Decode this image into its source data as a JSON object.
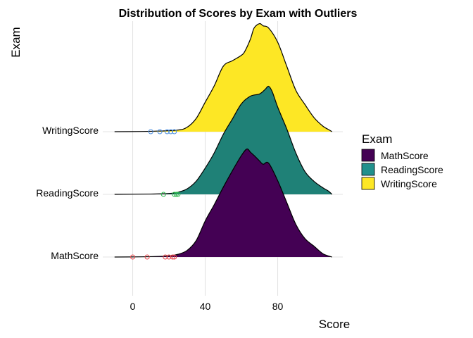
{
  "chart_data": {
    "type": "ridgeline",
    "title": "Distribution of Scores by Exam with Outliers",
    "xlabel": "Score",
    "ylabel": "Exam",
    "xlim": [
      -11,
      110
    ],
    "x_ticks": [
      0,
      40,
      80
    ],
    "grid": true,
    "legend": {
      "title": "Exam",
      "position": "right",
      "entries": [
        {
          "label": "MathScore",
          "color": "#440154"
        },
        {
          "label": "ReadingScore",
          "color": "#21908C"
        },
        {
          "label": "WritingScore",
          "color": "#FDE725"
        }
      ]
    },
    "categories": [
      "MathScore",
      "ReadingScore",
      "WritingScore"
    ],
    "series": [
      {
        "name": "MathScore",
        "fill": "#440154",
        "outlier_color": "#E8474B",
        "density_x": [
          -10,
          5,
          15,
          20,
          25,
          30,
          35,
          40,
          45,
          50,
          55,
          60,
          63,
          65,
          67,
          70,
          72,
          75,
          80,
          85,
          90,
          95,
          100,
          105,
          110
        ],
        "density_y": [
          0.0,
          0.002,
          0.006,
          0.01,
          0.025,
          0.06,
          0.15,
          0.33,
          0.48,
          0.64,
          0.79,
          0.93,
          0.99,
          0.96,
          0.93,
          0.88,
          0.85,
          0.86,
          0.7,
          0.5,
          0.3,
          0.17,
          0.1,
          0.03,
          0.0
        ],
        "outliers": [
          0,
          8,
          18,
          20,
          22,
          23
        ]
      },
      {
        "name": "ReadingScore",
        "fill": "#1F8177",
        "outlier_color": "#2DB84C",
        "density_x": [
          -10,
          10,
          20,
          25,
          30,
          35,
          40,
          45,
          50,
          55,
          60,
          65,
          70,
          73,
          75,
          77,
          80,
          85,
          90,
          95,
          100,
          105,
          108,
          110
        ],
        "density_y": [
          0.0,
          0.003,
          0.008,
          0.02,
          0.05,
          0.12,
          0.24,
          0.38,
          0.55,
          0.69,
          0.83,
          0.9,
          0.92,
          0.96,
          0.99,
          0.94,
          0.8,
          0.6,
          0.38,
          0.21,
          0.12,
          0.06,
          0.03,
          0.0
        ],
        "outliers": [
          17,
          23,
          24,
          25
        ]
      },
      {
        "name": "WritingScore",
        "fill": "#FDE725",
        "outlier_color": "#4C8FE0",
        "density_x": [
          -10,
          5,
          15,
          25,
          30,
          35,
          40,
          45,
          50,
          55,
          60,
          62,
          65,
          67,
          70,
          72,
          75,
          80,
          85,
          90,
          95,
          100,
          105,
          108,
          110
        ],
        "density_y": [
          0.0,
          0.002,
          0.006,
          0.015,
          0.04,
          0.12,
          0.27,
          0.42,
          0.6,
          0.65,
          0.7,
          0.74,
          0.85,
          0.95,
          0.99,
          0.97,
          0.95,
          0.82,
          0.6,
          0.38,
          0.25,
          0.13,
          0.05,
          0.02,
          0.0
        ],
        "outliers": [
          10,
          15,
          19,
          21,
          23
        ]
      }
    ]
  }
}
